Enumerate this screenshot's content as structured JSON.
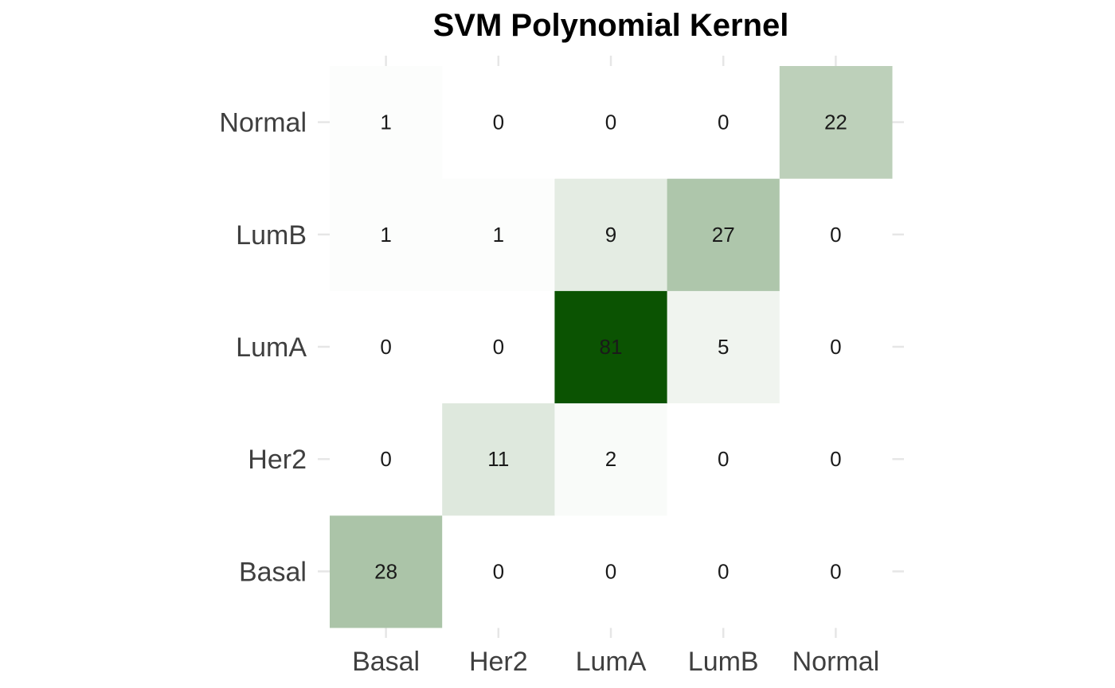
{
  "chart_data": {
    "type": "heatmap",
    "title": "SVM Polynomial Kernel",
    "xlabel": "",
    "ylabel": "",
    "x_categories": [
      "Basal",
      "Her2",
      "LumA",
      "LumB",
      "Normal"
    ],
    "y_categories": [
      "Basal",
      "Her2",
      "LumA",
      "LumB",
      "Normal"
    ],
    "values": [
      [
        28,
        0,
        0,
        0,
        0
      ],
      [
        0,
        11,
        2,
        0,
        0
      ],
      [
        0,
        0,
        81,
        5,
        0
      ],
      [
        1,
        1,
        9,
        27,
        0
      ],
      [
        1,
        0,
        0,
        0,
        22
      ]
    ],
    "color_low": "#ffffff",
    "color_high": "#0b5302",
    "value_range": [
      0,
      81
    ],
    "grid": false,
    "legend": "none"
  }
}
